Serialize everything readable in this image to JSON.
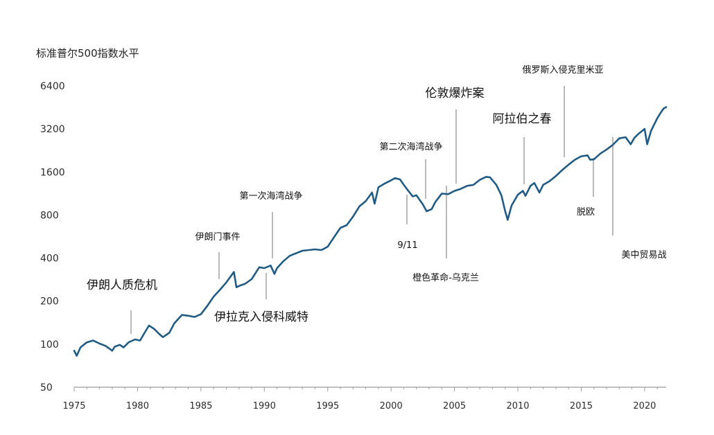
{
  "chart_data": {
    "type": "line",
    "title": "",
    "ylabel": "标准普尔500指数水平",
    "xlabel": "",
    "y_scale": "log",
    "ylim": [
      50,
      6400
    ],
    "xlim": [
      1975,
      2021.7
    ],
    "y_ticks": [
      "50",
      "100",
      "200",
      "400",
      "800",
      "1600",
      "3200",
      "6400"
    ],
    "x_ticks": [
      "1975",
      "1980",
      "1985",
      "1990",
      "1995",
      "2000",
      "2005",
      "2010",
      "2015",
      "2020"
    ],
    "color": "#1f5b85",
    "series": [
      {
        "x": [
          1975.0,
          1975.2,
          1975.5,
          1976.0,
          1976.5,
          1977.0,
          1977.5,
          1978.0,
          1978.2,
          1978.6,
          1978.9,
          1979.3,
          1979.5,
          1979.8,
          1980.2,
          1980.5,
          1980.9,
          1981.3,
          1981.7,
          1982.0,
          1982.5,
          1982.9,
          1983.5,
          1984.0,
          1984.5,
          1985.0,
          1985.5,
          1986.0,
          1986.5,
          1987.0,
          1987.6,
          1987.8,
          1988.0,
          1988.5,
          1989.0,
          1989.6,
          1990.0,
          1990.5,
          1990.8,
          1991.0,
          1991.5,
          1992.0,
          1993.0,
          1994.0,
          1994.5,
          1995.0,
          1995.5,
          1996.0,
          1996.5,
          1997.0,
          1997.5,
          1998.0,
          1998.5,
          1998.7,
          1999.0,
          1999.5,
          2000.0,
          2000.3,
          2000.7,
          2001.0,
          2001.3,
          2001.7,
          2002.0,
          2002.5,
          2002.8,
          2003.2,
          2003.5,
          2004.0,
          2004.5,
          2005.0,
          2005.5,
          2006.0,
          2006.5,
          2007.0,
          2007.5,
          2007.8,
          2008.3,
          2008.7,
          2009.0,
          2009.2,
          2009.5,
          2010.0,
          2010.4,
          2010.6,
          2011.0,
          2011.3,
          2011.7,
          2012.0,
          2012.5,
          2013.0,
          2013.5,
          2014.0,
          2014.5,
          2015.0,
          2015.5,
          2015.7,
          2016.0,
          2016.5,
          2017.0,
          2017.5,
          2018.0,
          2018.5,
          2018.9,
          2019.2,
          2019.5,
          2020.0,
          2020.2,
          2020.5,
          2021.0,
          2021.3,
          2021.5,
          2021.7
        ],
        "y": [
          90,
          83,
          95,
          103,
          106,
          101,
          97,
          90,
          96,
          99,
          95,
          103,
          105,
          108,
          106,
          118,
          135,
          128,
          118,
          112,
          120,
          140,
          160,
          158,
          155,
          162,
          185,
          215,
          240,
          270,
          320,
          250,
          255,
          265,
          285,
          345,
          340,
          355,
          310,
          340,
          380,
          415,
          450,
          460,
          455,
          480,
          560,
          650,
          680,
          780,
          920,
          1000,
          1150,
          960,
          1250,
          1330,
          1400,
          1450,
          1420,
          1300,
          1200,
          1080,
          1100,
          950,
          850,
          880,
          990,
          1130,
          1120,
          1180,
          1220,
          1280,
          1300,
          1410,
          1480,
          1470,
          1300,
          1100,
          850,
          740,
          930,
          1110,
          1180,
          1090,
          1280,
          1340,
          1150,
          1300,
          1380,
          1500,
          1650,
          1800,
          1950,
          2060,
          2090,
          1950,
          1960,
          2150,
          2300,
          2480,
          2750,
          2800,
          2500,
          2780,
          2950,
          3200,
          2500,
          3100,
          3800,
          4200,
          4450,
          4550
        ]
      }
    ],
    "annotations": [
      {
        "label": "伊朗人质危机",
        "year": 1979.5
      },
      {
        "label": "伊朗门事件",
        "year": 1986.5
      },
      {
        "label": "伊拉克入侵科威特",
        "year": 1990.5
      },
      {
        "label": "第一次海湾战争",
        "year": 1991.0
      },
      {
        "label": "9/11",
        "year": 2001.2
      },
      {
        "label": "第二次海湾战争",
        "year": 2003.0
      },
      {
        "label": "橙色革命-乌克兰",
        "year": 2004.5
      },
      {
        "label": "伦敦爆炸案",
        "year": 2005.5
      },
      {
        "label": "阿拉伯之春",
        "year": 2010.5
      },
      {
        "label": "俄罗斯入侵克里米亚",
        "year": 2014.2
      },
      {
        "label": "脱欧",
        "year": 2016.5
      },
      {
        "label": "美中贸易战",
        "year": 2018.0
      }
    ]
  }
}
